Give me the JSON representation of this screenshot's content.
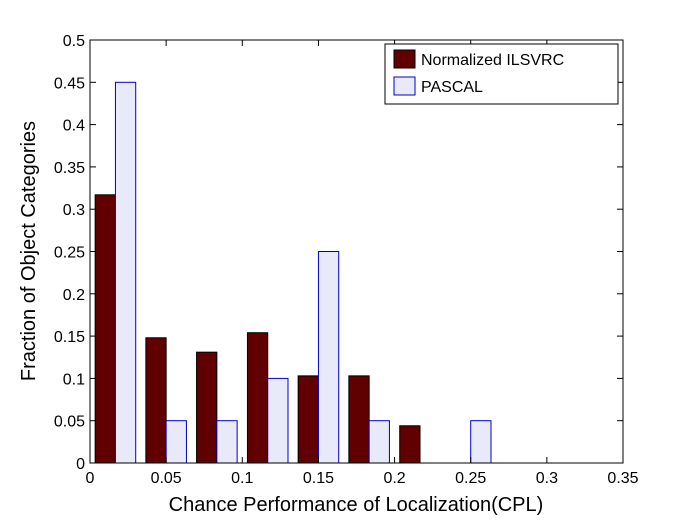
{
  "chart_data": {
    "type": "bar",
    "xlabel": "Chance Performance of Localization(CPL)",
    "ylabel": "Fraction of Object Categories",
    "xlim": [
      0,
      0.35
    ],
    "ylim": [
      0,
      0.5
    ],
    "xticks": [
      "0",
      "0.05",
      "0.1",
      "0.15",
      "0.2",
      "0.25",
      "0.3",
      "0.35"
    ],
    "yticks": [
      "0",
      "0.05",
      "0.1",
      "0.15",
      "0.2",
      "0.25",
      "0.3",
      "0.35",
      "0.4",
      "0.45",
      "0.5"
    ],
    "bin_centers": [
      0.0167,
      0.05,
      0.0833,
      0.1167,
      0.15,
      0.1833,
      0.2167,
      0.25
    ],
    "legend_position": "top-right",
    "grid": false,
    "series": [
      {
        "name": "Normalized ILSVRC",
        "color": "#600000",
        "edge": "#000000",
        "values": [
          0.317,
          0.148,
          0.131,
          0.154,
          0.103,
          0.103,
          0.044,
          0
        ]
      },
      {
        "name": "PASCAL",
        "color": "#e8eafa",
        "edge": "#0000c8",
        "values": [
          0.45,
          0.05,
          0.05,
          0.1,
          0.25,
          0.05,
          0,
          0.05
        ]
      }
    ]
  }
}
